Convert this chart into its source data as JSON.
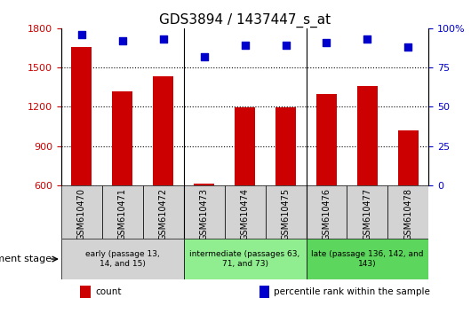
{
  "title": "GDS3894 / 1437447_s_at",
  "categories": [
    "GSM610470",
    "GSM610471",
    "GSM610472",
    "GSM610473",
    "GSM610474",
    "GSM610475",
    "GSM610476",
    "GSM610477",
    "GSM610478"
  ],
  "counts": [
    1660,
    1320,
    1430,
    615,
    1195,
    1195,
    1300,
    1360,
    1020
  ],
  "percentile_ranks": [
    96,
    92,
    93,
    82,
    89,
    89,
    91,
    93,
    88
  ],
  "bar_color": "#cc0000",
  "dot_color": "#0000cc",
  "ylim_left": [
    600,
    1800
  ],
  "ylim_right": [
    0,
    100
  ],
  "yticks_left": [
    600,
    900,
    1200,
    1500,
    1800
  ],
  "yticks_right": [
    0,
    25,
    50,
    75,
    100
  ],
  "groups_info": [
    {
      "label": "early (passage 13,\n14, and 15)",
      "start": 0,
      "end": 3,
      "bg": "#d3d3d3"
    },
    {
      "label": "intermediate (passages 63,\n71, and 73)",
      "start": 3,
      "end": 6,
      "bg": "#90ee90"
    },
    {
      "label": "late (passage 136, 142, and\n143)",
      "start": 6,
      "end": 9,
      "bg": "#5cd65c"
    }
  ],
  "legend_items": [
    {
      "label": "count",
      "color": "#cc0000"
    },
    {
      "label": "percentile rank within the sample",
      "color": "#0000cc"
    }
  ],
  "dev_stage_label": "development stage",
  "xtick_bg": "#d3d3d3",
  "xtick_fontsize": 7,
  "left_ytick_color": "#cc0000",
  "right_ytick_color": "#0000cc",
  "title_fontsize": 11,
  "gridline_style": "dotted"
}
